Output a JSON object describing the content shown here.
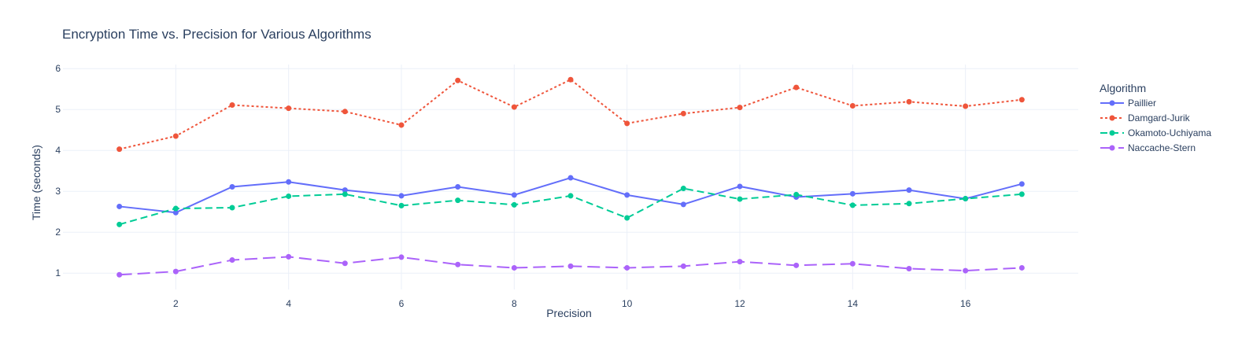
{
  "chart_data": {
    "type": "line",
    "title": "Encryption Time vs. Precision for Various Algorithms",
    "xlabel": "Precision",
    "ylabel": "Time (seconds)",
    "xlim": [
      0.0,
      18.0
    ],
    "ylim": [
      0.6,
      6.1
    ],
    "xticks": [
      2,
      4,
      6,
      8,
      10,
      12,
      14,
      16
    ],
    "yticks": [
      1,
      2,
      3,
      4,
      5,
      6
    ],
    "grid": true,
    "legend_title": "Algorithm",
    "legend_position": "right",
    "x": [
      1,
      2,
      3,
      4,
      5,
      6,
      7,
      8,
      9,
      10,
      11,
      12,
      13,
      14,
      15,
      16,
      17
    ],
    "series": [
      {
        "name": "Paillier",
        "color": "#636efa",
        "dash": "solid",
        "values": [
          2.63,
          2.48,
          3.11,
          3.23,
          3.03,
          2.89,
          3.11,
          2.91,
          3.33,
          2.91,
          2.68,
          3.12,
          2.86,
          2.94,
          3.03,
          2.82,
          3.18
        ]
      },
      {
        "name": "Damgard-Jurik",
        "color": "#ef553b",
        "dash": "dot",
        "values": [
          4.03,
          4.35,
          5.11,
          5.03,
          4.95,
          4.62,
          5.71,
          5.06,
          5.73,
          4.66,
          4.9,
          5.05,
          5.54,
          5.09,
          5.19,
          5.08,
          5.24
        ]
      },
      {
        "name": "Okamoto-Uchiyama",
        "color": "#00cc96",
        "dash": "dash",
        "values": [
          2.19,
          2.58,
          2.6,
          2.88,
          2.93,
          2.65,
          2.78,
          2.67,
          2.89,
          2.35,
          3.07,
          2.81,
          2.92,
          2.66,
          2.7,
          2.82,
          2.93
        ]
      },
      {
        "name": "Naccache-Stern",
        "color": "#ab63fa",
        "dash": "longdash",
        "values": [
          0.96,
          1.04,
          1.32,
          1.4,
          1.24,
          1.39,
          1.21,
          1.13,
          1.17,
          1.13,
          1.17,
          1.28,
          1.19,
          1.23,
          1.11,
          1.06,
          1.13
        ]
      }
    ]
  }
}
